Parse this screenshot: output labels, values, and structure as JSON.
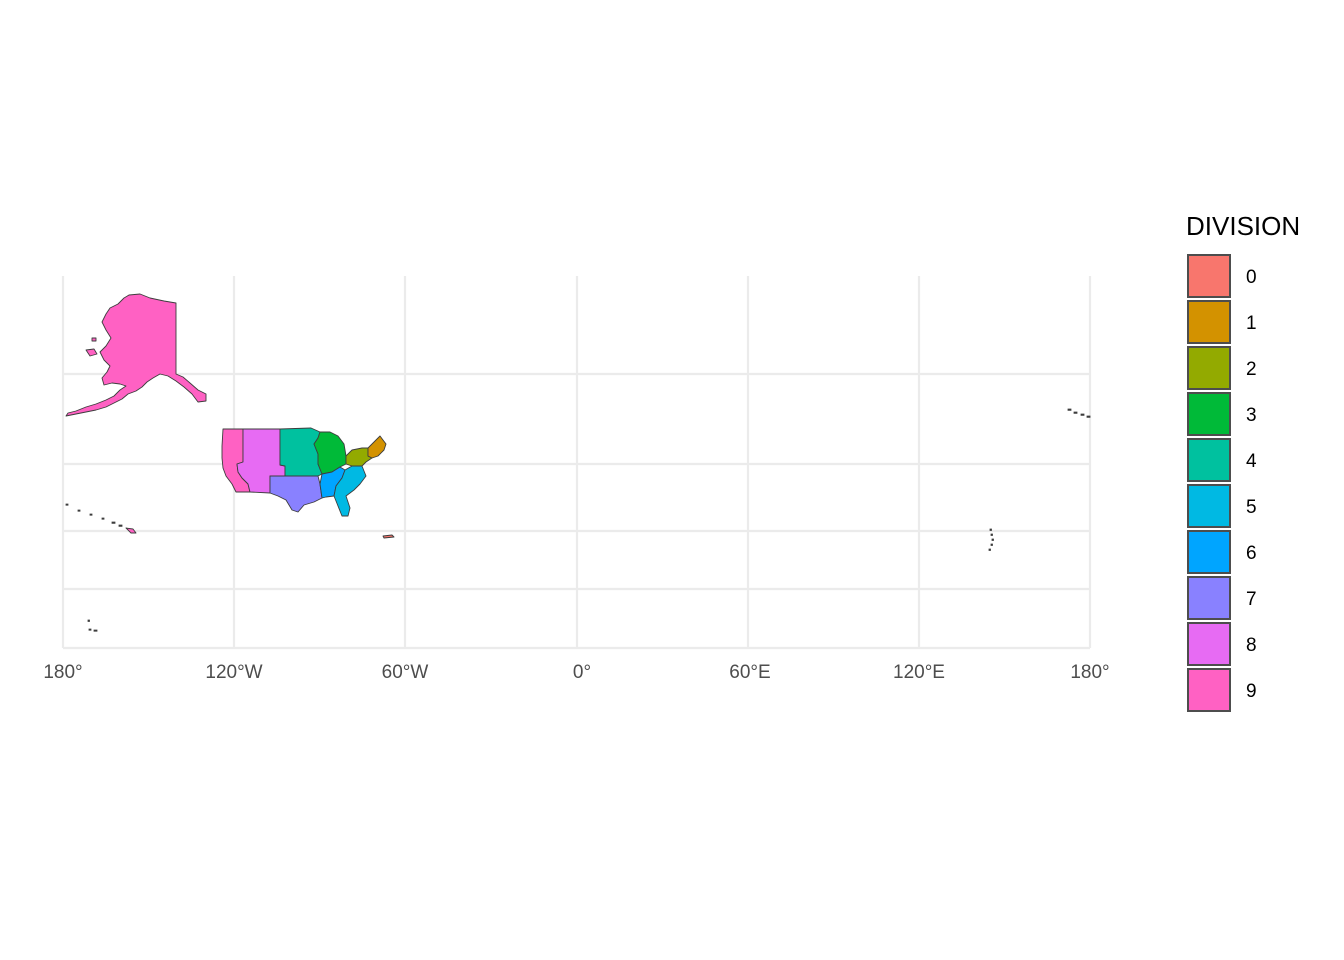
{
  "map": {
    "x_axis_ticks": [
      "180°",
      "120°W",
      "60°W",
      "0°",
      "60°E",
      "120°E",
      "180°"
    ],
    "x_axis_values": [
      -180,
      -120,
      -60,
      0,
      60,
      120,
      180
    ],
    "y_axis_ticks": [],
    "grid": true,
    "legend_placement": "right"
  },
  "legend": {
    "title": "DIVISION",
    "items": [
      {
        "label": "0",
        "color": "#F8766D"
      },
      {
        "label": "1",
        "color": "#D39200"
      },
      {
        "label": "2",
        "color": "#93AA00"
      },
      {
        "label": "3",
        "color": "#00BA38"
      },
      {
        "label": "4",
        "color": "#00C19F"
      },
      {
        "label": "5",
        "color": "#00B9E3"
      },
      {
        "label": "6",
        "color": "#00A5FF"
      },
      {
        "label": "7",
        "color": "#8981FF"
      },
      {
        "label": "8",
        "color": "#E76BF3"
      },
      {
        "label": "9",
        "color": "#FF61C3"
      }
    ]
  },
  "regions": [
    {
      "name": "Alaska",
      "division": "9"
    },
    {
      "name": "Hawaii",
      "division": "9"
    },
    {
      "name": "Pacific",
      "division": "9"
    },
    {
      "name": "Mountain",
      "division": "8"
    },
    {
      "name": "West North Central",
      "division": "4"
    },
    {
      "name": "West South Central",
      "division": "7"
    },
    {
      "name": "East North Central",
      "division": "3"
    },
    {
      "name": "East South Central",
      "division": "6"
    },
    {
      "name": "South Atlantic",
      "division": "5"
    },
    {
      "name": "Middle Atlantic",
      "division": "2"
    },
    {
      "name": "New England",
      "division": "1"
    },
    {
      "name": "Puerto Rico",
      "division": "0"
    }
  ]
}
